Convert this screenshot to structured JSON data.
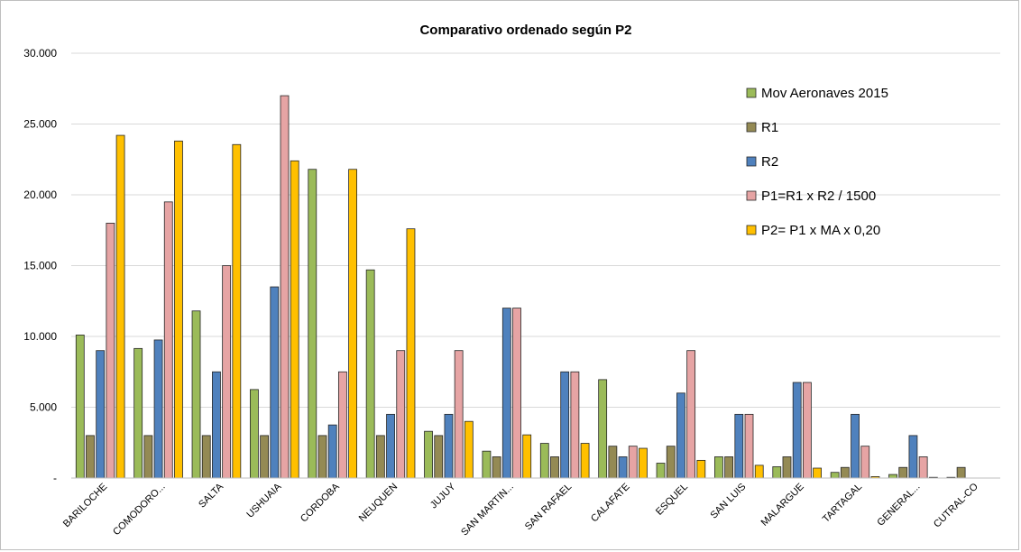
{
  "chart_data": {
    "type": "bar",
    "title": "Comparativo ordenado según P2",
    "xlabel": "",
    "ylabel": "",
    "ylim": [
      0,
      30000
    ],
    "y_ticks": [
      "-",
      "5.000",
      "10.000",
      "15.000",
      "20.000",
      "25.000",
      "30.000"
    ],
    "grid": true,
    "legend_position": "top-right",
    "categories": [
      "BARILOCHE",
      "COMODORO...",
      "SALTA",
      "USHUAIA",
      "CORDOBA",
      "NEUQUEN",
      "JUJUY",
      "SAN MARTIN...",
      "SAN RAFAEL",
      "CALAFATE",
      "ESQUEL",
      "SAN LUIS",
      "MALARGUE",
      "TARTAGAL",
      "GENERAL...",
      "CUTRAL-CO"
    ],
    "series": [
      {
        "name": "Mov Aeronaves 2015",
        "color": "#9BBB59",
        "values": [
          10100,
          9150,
          11800,
          6250,
          21800,
          14700,
          3300,
          1900,
          2450,
          6950,
          1050,
          1500,
          800,
          400,
          250,
          50
        ]
      },
      {
        "name": "R1",
        "color": "#948A54",
        "values": [
          3000,
          3000,
          3000,
          3000,
          3000,
          3000,
          3000,
          1500,
          1500,
          2250,
          2250,
          1500,
          1500,
          750,
          750,
          750
        ]
      },
      {
        "name": "R2",
        "color": "#4F81BD",
        "values": [
          9000,
          9750,
          7500,
          13500,
          3750,
          4500,
          4500,
          12000,
          7500,
          1500,
          6000,
          4500,
          6750,
          4500,
          3000,
          0
        ]
      },
      {
        "name": "P1=R1 x R2 / 1500",
        "color": "#E6A4A4",
        "values": [
          18000,
          19500,
          15000,
          27000,
          7500,
          9000,
          9000,
          12000,
          7500,
          2250,
          9000,
          4500,
          6750,
          2250,
          1500,
          0
        ]
      },
      {
        "name": "P2= P1 x MA x 0,20",
        "color": "#FFC000",
        "values": [
          24200,
          23800,
          23550,
          22400,
          21800,
          17600,
          4000,
          3050,
          2450,
          2100,
          1250,
          900,
          700,
          100,
          50,
          0
        ]
      }
    ]
  }
}
